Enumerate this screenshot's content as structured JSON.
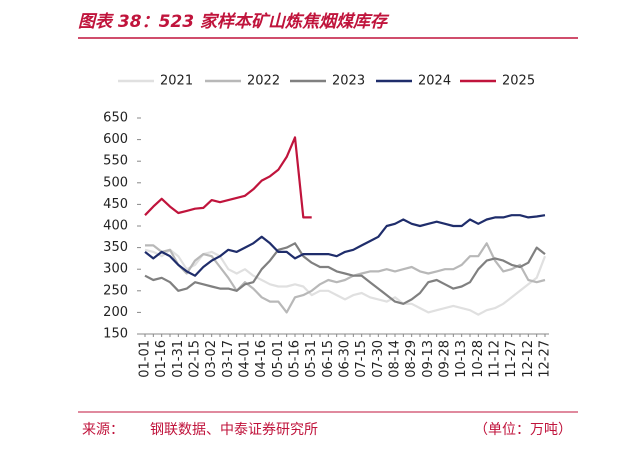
{
  "chart_data": {
    "type": "line",
    "title": "图表 38：523 家样本矿山炼焦烟煤库存",
    "source_label": "来源：",
    "source": "钢联数据、中泰证券研究所",
    "unit": "（单位：万吨）",
    "categories": [
      "01-01",
      null,
      "01-16",
      null,
      "01-31",
      null,
      "02-15",
      null,
      "03-02",
      null,
      "03-17",
      null,
      "04-01",
      null,
      "04-16",
      null,
      "05-01",
      null,
      "05-16",
      null,
      "05-31",
      null,
      "06-15",
      null,
      "06-30",
      null,
      "07-15",
      null,
      "07-30",
      null,
      "08-14",
      null,
      "08-29",
      null,
      "09-13",
      null,
      "09-28",
      null,
      "10-13",
      null,
      "10-28",
      null,
      "11-12",
      null,
      "11-27",
      null,
      "12-12",
      null,
      "12-27"
    ],
    "series": [
      {
        "name": "2021",
        "color": "#e0e0e0",
        "values": [
          345,
          340,
          330,
          345,
          330,
          300,
          310,
          335,
          340,
          330,
          300,
          290,
          300,
          285,
          275,
          265,
          260,
          260,
          265,
          260,
          240,
          250,
          250,
          240,
          230,
          240,
          245,
          235,
          230,
          225,
          235,
          220,
          220,
          210,
          200,
          205,
          210,
          215,
          210,
          205,
          195,
          205,
          210,
          220,
          235,
          250,
          265,
          280,
          330
        ]
      },
      {
        "name": "2022",
        "color": "#b8b8b8",
        "values": [
          355,
          355,
          340,
          345,
          310,
          290,
          320,
          335,
          330,
          305,
          280,
          250,
          270,
          255,
          235,
          225,
          225,
          200,
          235,
          240,
          250,
          265,
          275,
          270,
          275,
          285,
          290,
          295,
          295,
          300,
          295,
          300,
          305,
          295,
          290,
          295,
          300,
          300,
          310,
          330,
          330,
          360,
          320,
          295,
          300,
          310,
          275,
          270,
          275
        ]
      },
      {
        "name": "2023",
        "color": "#808080",
        "values": [
          285,
          275,
          280,
          270,
          250,
          255,
          270,
          265,
          260,
          255,
          255,
          250,
          265,
          270,
          300,
          320,
          345,
          350,
          360,
          330,
          315,
          305,
          305,
          295,
          290,
          285,
          285,
          270,
          255,
          240,
          225,
          220,
          230,
          245,
          270,
          275,
          265,
          255,
          260,
          270,
          300,
          320,
          325,
          320,
          310,
          305,
          315,
          350,
          335
        ]
      },
      {
        "name": "2024",
        "color": "#1f2d6b",
        "values": [
          340,
          325,
          340,
          330,
          310,
          295,
          285,
          305,
          320,
          330,
          345,
          340,
          350,
          360,
          375,
          360,
          340,
          340,
          325,
          335,
          335,
          335,
          335,
          330,
          340,
          345,
          355,
          365,
          375,
          400,
          405,
          415,
          405,
          400,
          405,
          410,
          405,
          400,
          400,
          415,
          405,
          415,
          420,
          420,
          425,
          425,
          420,
          422,
          425
        ]
      },
      {
        "name": "2025",
        "color": "#c0143c",
        "values": [
          425,
          445,
          463,
          445,
          430,
          435,
          440,
          442,
          460,
          455,
          460,
          465,
          470,
          485,
          505,
          515,
          530,
          560,
          605,
          420,
          420,
          null,
          null,
          null,
          null,
          null,
          null,
          null,
          null,
          null,
          null,
          null,
          null,
          null,
          null,
          null,
          null,
          null,
          null,
          null,
          null,
          null,
          null,
          null,
          null,
          null,
          null,
          null,
          null
        ]
      }
    ],
    "ylim": [
      150,
      650
    ],
    "yticks": [
      150,
      200,
      250,
      300,
      350,
      400,
      450,
      500,
      550,
      600,
      650
    ]
  }
}
